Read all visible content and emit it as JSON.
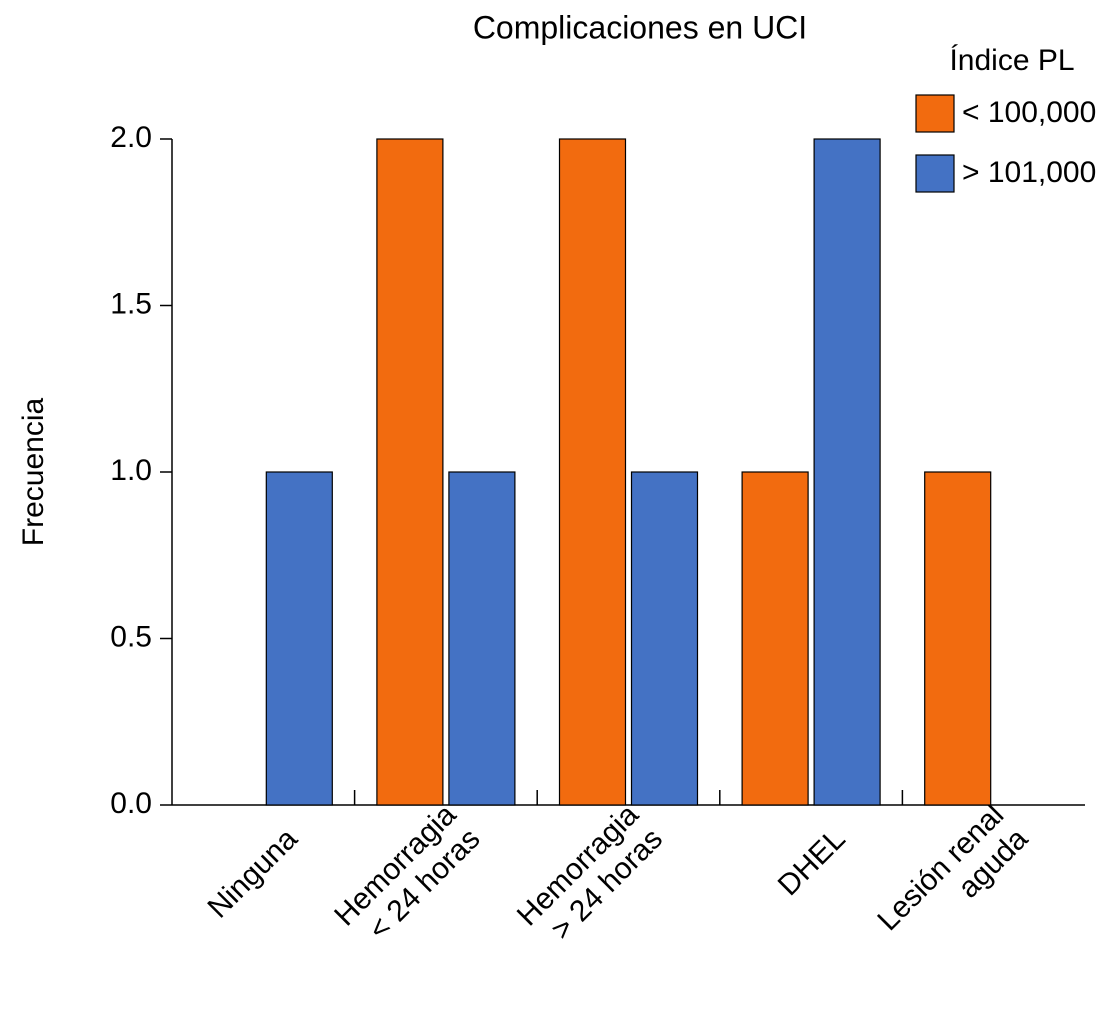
{
  "chart_data": {
    "type": "bar",
    "title": "Complicaciones en UCI",
    "y_label": "Frecuencia",
    "categories": [
      [
        "Ninguna"
      ],
      [
        "Hemorragia",
        "< 24 horas"
      ],
      [
        "Hemorragia",
        "> 24 horas"
      ],
      [
        "DHEL"
      ],
      [
        "Lesión renal",
        "aguda"
      ]
    ],
    "legend_title": "Índice PL",
    "series": [
      {
        "name": "< 100,000",
        "color": "#f26b0f",
        "values": [
          0,
          2,
          2,
          1,
          1
        ]
      },
      {
        "name": "> 101,000",
        "color": "#4472c4",
        "values": [
          1,
          1,
          1,
          2,
          0
        ]
      }
    ],
    "ylim": [
      0,
      2
    ],
    "yticks": [
      {
        "value": 0,
        "label": "0.0"
      },
      {
        "value": 0.5,
        "label": "0.5"
      },
      {
        "value": 1,
        "label": "1.0"
      },
      {
        "value": 1.5,
        "label": "1.5"
      },
      {
        "value": 2,
        "label": "2.0"
      }
    ],
    "grid": false
  }
}
